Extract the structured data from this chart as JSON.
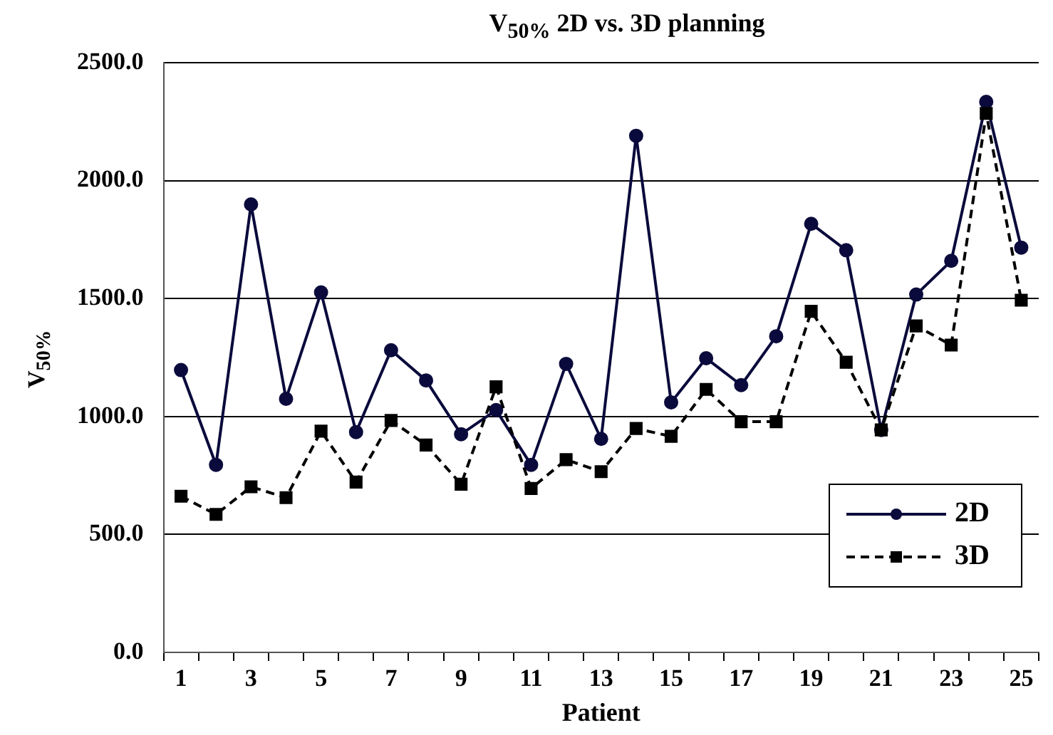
{
  "chart_data": {
    "type": "line",
    "title": "V$_{50%}$ 2D vs. 3D planning",
    "xlabel": "Patient",
    "ylabel": "V$_{50%}$",
    "x": [
      1,
      2,
      3,
      4,
      5,
      6,
      7,
      8,
      9,
      10,
      11,
      12,
      13,
      14,
      15,
      16,
      17,
      18,
      19,
      20,
      21,
      22,
      23,
      24,
      25
    ],
    "xlim": [
      0.5,
      25.5
    ],
    "xticks": [
      1,
      3,
      5,
      7,
      9,
      11,
      13,
      15,
      17,
      19,
      21,
      23,
      25,
      {
        "value": 0.5,
        "label": null
      },
      {
        "value": 1.5,
        "label": null
      },
      {
        "value": 2.5,
        "label": null
      },
      {
        "value": 3.5,
        "label": null
      },
      {
        "value": 4.5,
        "label": null
      },
      {
        "value": 5.5,
        "label": null
      },
      {
        "value": 6.5,
        "label": null
      },
      {
        "value": 7.5,
        "label": null
      },
      {
        "value": 8.5,
        "label": null
      },
      {
        "value": 9.5,
        "label": null
      },
      {
        "value": 10.5,
        "label": null
      },
      {
        "value": 11.5,
        "label": null
      },
      {
        "value": 12.5,
        "label": null
      },
      {
        "value": 13.5,
        "label": null
      },
      {
        "value": 14.5,
        "label": null
      },
      {
        "value": 15.5,
        "label": null
      },
      {
        "value": 16.5,
        "label": null
      },
      {
        "value": 17.5,
        "label": null
      },
      {
        "value": 18.5,
        "label": null
      },
      {
        "value": 19.5,
        "label": null
      },
      {
        "value": 20.5,
        "label": null
      },
      {
        "value": 21.5,
        "label": null
      },
      {
        "value": 22.5,
        "label": null
      },
      {
        "value": 23.5,
        "label": null
      },
      {
        "value": 24.5,
        "label": null
      },
      {
        "value": 25.5,
        "label": null
      }
    ],
    "series": [
      {
        "name": "2D",
        "color": "#0a0a3c",
        "marker": "circle",
        "line_style": "solid",
        "values": [
          1197,
          795,
          1899,
          1075,
          1526,
          934,
          1281,
          1153,
          925,
          1027,
          795,
          1223,
          905,
          2190,
          1060,
          1247,
          1133,
          1340,
          1817,
          1705,
          943,
          1517,
          1660,
          2334,
          1716
        ]
      },
      {
        "name": "3D",
        "color": "#000000",
        "marker": "square",
        "line_style": "dashed",
        "values": [
          662,
          585,
          702,
          656,
          938,
          722,
          983,
          879,
          713,
          1126,
          695,
          817,
          766,
          949,
          916,
          1115,
          978,
          978,
          1446,
          1230,
          943,
          1384,
          1303,
          2285,
          1493
        ]
      }
    ],
    "ylim": [
      0,
      2500
    ],
    "yticks": [
      {
        "value": 0,
        "label": "0.0"
      },
      {
        "value": 500,
        "label": "500.0"
      },
      {
        "value": 1000,
        "label": "1000.0"
      },
      {
        "value": 1500,
        "label": "1500.0"
      },
      {
        "value": 2000,
        "label": "2000.0"
      },
      {
        "value": 2500,
        "label": "2500.0"
      }
    ],
    "grid": "y",
    "legend": "bottom right"
  }
}
